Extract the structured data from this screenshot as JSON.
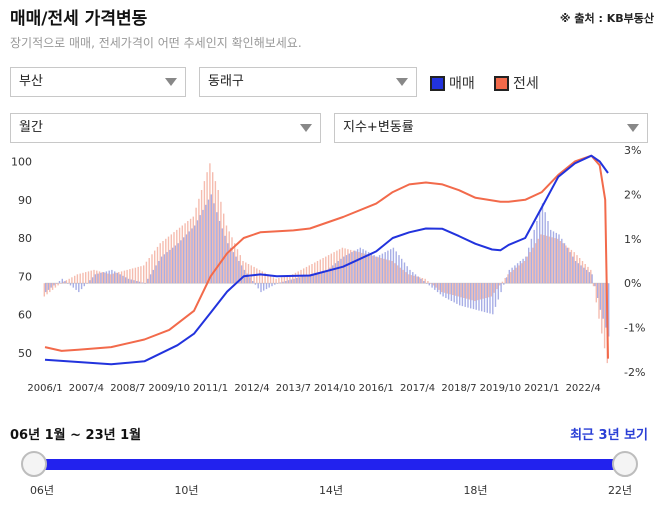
{
  "header": {
    "title": "매매/전세 가격변동",
    "source": "※ 출처 : KB부동산",
    "subtitle": "장기적으로 매매, 전세가격이 어떤 추세인지 확인해보세요."
  },
  "filters": {
    "region": "부산",
    "district": "동래구",
    "period": "월간",
    "metric": "지수+변동률"
  },
  "legend": {
    "sale_label": "매매",
    "jeonse_label": "전세"
  },
  "colors": {
    "sale": "#2233dd",
    "jeonse": "#f26a4b",
    "sale_bar": "#8a93dd",
    "jeonse_bar": "#f2a594"
  },
  "chart_data": {
    "type": "line",
    "x_tick_labels": [
      "2006/1",
      "2007/4",
      "2008/7",
      "2009/10",
      "2011/1",
      "2012/4",
      "2013/7",
      "2014/10",
      "2016/1",
      "2017/4",
      "2018/7",
      "2019/10",
      "2021/1",
      "2022/4"
    ],
    "x_range": [
      "2006/1",
      "2023/1"
    ],
    "y_left_ticks": [
      "100",
      "90",
      "80",
      "70",
      "60",
      "50"
    ],
    "y_left_range": [
      45,
      103
    ],
    "y_right_ticks": [
      "3%",
      "2%",
      "1%",
      "0%",
      "-1%",
      "-2%"
    ],
    "y_right_range": [
      -2,
      3
    ],
    "grid": false,
    "series": [
      {
        "name": "매매",
        "kind": "index",
        "points": [
          [
            "2006/1",
            48.2
          ],
          [
            "2007/1",
            47.6
          ],
          [
            "2008/1",
            47.0
          ],
          [
            "2009/1",
            47.8
          ],
          [
            "2010/1",
            52.0
          ],
          [
            "2010/7",
            55.0
          ],
          [
            "2011/1",
            60.5
          ],
          [
            "2011/7",
            66.0
          ],
          [
            "2012/1",
            70.0
          ],
          [
            "2012/7",
            70.5
          ],
          [
            "2013/1",
            70.0
          ],
          [
            "2014/1",
            70.2
          ],
          [
            "2015/1",
            72.5
          ],
          [
            "2016/1",
            76.5
          ],
          [
            "2016/7",
            80.0
          ],
          [
            "2017/1",
            81.5
          ],
          [
            "2017/7",
            82.5
          ],
          [
            "2018/1",
            82.4
          ],
          [
            "2018/7",
            80.5
          ],
          [
            "2019/1",
            78.5
          ],
          [
            "2019/7",
            77.0
          ],
          [
            "2019/10",
            76.8
          ],
          [
            "2020/1",
            78.2
          ],
          [
            "2020/7",
            80.0
          ],
          [
            "2021/1",
            88.0
          ],
          [
            "2021/7",
            96.0
          ],
          [
            "2022/1",
            99.5
          ],
          [
            "2022/7",
            101.5
          ],
          [
            "2022/10",
            100.0
          ],
          [
            "2023/1",
            97.0
          ]
        ]
      },
      {
        "name": "전세",
        "kind": "index",
        "points": [
          [
            "2006/1",
            51.5
          ],
          [
            "2006/7",
            50.5
          ],
          [
            "2007/1",
            50.8
          ],
          [
            "2008/1",
            51.5
          ],
          [
            "2009/1",
            53.5
          ],
          [
            "2009/10",
            56.0
          ],
          [
            "2010/7",
            61.0
          ],
          [
            "2011/1",
            70.0
          ],
          [
            "2011/7",
            76.0
          ],
          [
            "2012/1",
            80.0
          ],
          [
            "2012/7",
            81.5
          ],
          [
            "2013/7",
            82.0
          ],
          [
            "2014/1",
            82.5
          ],
          [
            "2015/1",
            85.5
          ],
          [
            "2016/1",
            89.0
          ],
          [
            "2016/7",
            92.0
          ],
          [
            "2017/1",
            94.0
          ],
          [
            "2017/7",
            94.5
          ],
          [
            "2018/1",
            94.0
          ],
          [
            "2018/7",
            92.5
          ],
          [
            "2019/1",
            90.5
          ],
          [
            "2019/10",
            89.5
          ],
          [
            "2020/1",
            89.5
          ],
          [
            "2020/7",
            90.0
          ],
          [
            "2021/1",
            92.0
          ],
          [
            "2021/7",
            96.5
          ],
          [
            "2022/1",
            100.0
          ],
          [
            "2022/7",
            101.5
          ],
          [
            "2022/10",
            99.0
          ],
          [
            "2022/12",
            90.0
          ],
          [
            "2023/1",
            48.5
          ]
        ]
      },
      {
        "name": "매매",
        "kind": "change",
        "points": [
          [
            "2006/1",
            -0.2
          ],
          [
            "2006/7",
            0.1
          ],
          [
            "2007/1",
            -0.2
          ],
          [
            "2007/7",
            0.2
          ],
          [
            "2008/1",
            0.3
          ],
          [
            "2008/7",
            0.1
          ],
          [
            "2009/1",
            0.0
          ],
          [
            "2009/7",
            0.6
          ],
          [
            "2010/1",
            0.9
          ],
          [
            "2010/7",
            1.3
          ],
          [
            "2011/1",
            2.0
          ],
          [
            "2011/4",
            1.4
          ],
          [
            "2011/7",
            0.9
          ],
          [
            "2012/1",
            0.3
          ],
          [
            "2012/7",
            -0.2
          ],
          [
            "2013/1",
            0.0
          ],
          [
            "2013/7",
            0.1
          ],
          [
            "2014/1",
            0.2
          ],
          [
            "2014/7",
            0.3
          ],
          [
            "2015/1",
            0.6
          ],
          [
            "2015/7",
            0.8
          ],
          [
            "2016/1",
            0.6
          ],
          [
            "2016/7",
            0.8
          ],
          [
            "2017/1",
            0.3
          ],
          [
            "2017/7",
            0.0
          ],
          [
            "2018/1",
            -0.3
          ],
          [
            "2018/7",
            -0.5
          ],
          [
            "2019/1",
            -0.6
          ],
          [
            "2019/7",
            -0.7
          ],
          [
            "2020/1",
            0.3
          ],
          [
            "2020/7",
            0.6
          ],
          [
            "2021/1",
            1.8
          ],
          [
            "2021/4",
            1.2
          ],
          [
            "2021/7",
            1.1
          ],
          [
            "2022/1",
            0.5
          ],
          [
            "2022/7",
            0.2
          ],
          [
            "2022/10",
            -0.6
          ],
          [
            "2023/1",
            -1.2
          ]
        ]
      },
      {
        "name": "전세",
        "kind": "change",
        "points": [
          [
            "2006/1",
            -0.3
          ],
          [
            "2006/7",
            0.0
          ],
          [
            "2007/1",
            0.2
          ],
          [
            "2007/7",
            0.3
          ],
          [
            "2008/1",
            0.2
          ],
          [
            "2008/7",
            0.3
          ],
          [
            "2009/1",
            0.4
          ],
          [
            "2009/7",
            0.9
          ],
          [
            "2010/1",
            1.2
          ],
          [
            "2010/7",
            1.5
          ],
          [
            "2011/1",
            2.7
          ],
          [
            "2011/4",
            2.1
          ],
          [
            "2011/7",
            1.3
          ],
          [
            "2012/1",
            0.5
          ],
          [
            "2012/7",
            0.3
          ],
          [
            "2013/1",
            0.1
          ],
          [
            "2013/7",
            0.2
          ],
          [
            "2014/1",
            0.4
          ],
          [
            "2014/7",
            0.6
          ],
          [
            "2015/1",
            0.8
          ],
          [
            "2015/7",
            0.7
          ],
          [
            "2016/1",
            0.6
          ],
          [
            "2016/7",
            0.5
          ],
          [
            "2017/1",
            0.2
          ],
          [
            "2017/7",
            0.1
          ],
          [
            "2018/1",
            -0.2
          ],
          [
            "2018/7",
            -0.3
          ],
          [
            "2019/1",
            -0.4
          ],
          [
            "2019/7",
            -0.3
          ],
          [
            "2020/1",
            0.2
          ],
          [
            "2020/7",
            0.5
          ],
          [
            "2021/1",
            1.1
          ],
          [
            "2021/7",
            1.0
          ],
          [
            "2022/1",
            0.7
          ],
          [
            "2022/7",
            0.3
          ],
          [
            "2022/10",
            -0.8
          ],
          [
            "2023/1",
            -1.8
          ]
        ]
      }
    ]
  },
  "range": {
    "label": "06년 1월 ~ 23년 1월",
    "recent_link": "최근 3년 보기",
    "ticks": [
      "06년",
      "10년",
      "14년",
      "18년",
      "22년"
    ]
  }
}
